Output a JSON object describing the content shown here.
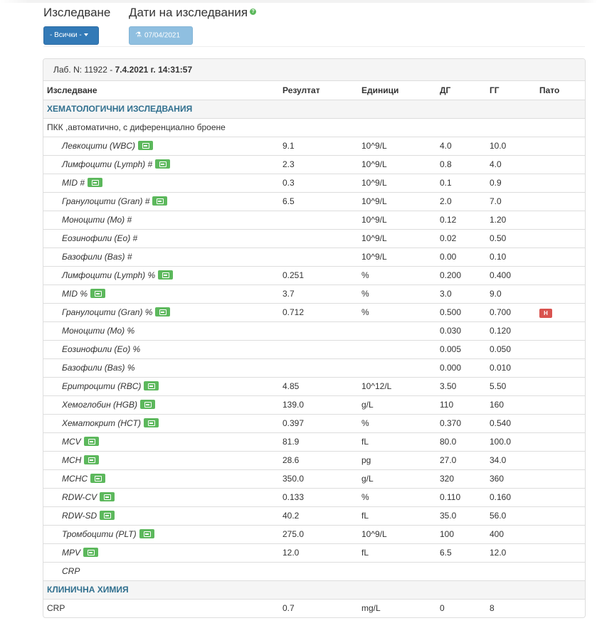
{
  "filters": {
    "study_label": "Изследване",
    "dates_label": "Дати на изследвания",
    "help_icon": "question-circle-icon",
    "study_button": "- Всички -",
    "date_button": "07/04/2021",
    "date_button_icon": "flask-icon"
  },
  "panel": {
    "lab_prefix": "Лаб. N: 11922 - ",
    "lab_datetime": "7.4.2021 г. 14:31:57"
  },
  "table": {
    "headers": [
      "Изследване",
      "Резултат",
      "Единици",
      "ДГ",
      "ГГ",
      "Пато"
    ],
    "sections": {
      "hematology": "ХЕМАТОЛОГИЧНИ ИЗСЛЕДВАНИЯ",
      "hematology_group": "ПКК ,автоматично, с диференциално броене",
      "chemistry": "КЛИНИЧНА ХИМИЯ"
    },
    "rows": [
      {
        "name": "Левкоцити (WBC)",
        "chart": true,
        "result": "9.1",
        "unit": "10^9/L",
        "low": "4.0",
        "high": "10.0",
        "flag": ""
      },
      {
        "name": "Лимфоцити (Lymph) #",
        "chart": true,
        "result": "2.3",
        "unit": "10^9/L",
        "low": "0.8",
        "high": "4.0",
        "flag": ""
      },
      {
        "name": "MID #",
        "chart": true,
        "result": "0.3",
        "unit": "10^9/L",
        "low": "0.1",
        "high": "0.9",
        "flag": ""
      },
      {
        "name": "Гранулоцити (Gran) #",
        "chart": true,
        "result": "6.5",
        "unit": "10^9/L",
        "low": "2.0",
        "high": "7.0",
        "flag": ""
      },
      {
        "name": "Моноцити (Mo) #",
        "chart": false,
        "result": "",
        "unit": "10^9/L",
        "low": "0.12",
        "high": "1.20",
        "flag": ""
      },
      {
        "name": "Еозинофили (Eo) #",
        "chart": false,
        "result": "",
        "unit": "10^9/L",
        "low": "0.02",
        "high": "0.50",
        "flag": ""
      },
      {
        "name": "Базофили (Bas) #",
        "chart": false,
        "result": "",
        "unit": "10^9/L",
        "low": "0.00",
        "high": "0.10",
        "flag": ""
      },
      {
        "name": "Лимфоцити (Lymph) %",
        "chart": true,
        "result": "0.251",
        "unit": "%",
        "low": "0.200",
        "high": "0.400",
        "flag": ""
      },
      {
        "name": "MID %",
        "chart": true,
        "result": "3.7",
        "unit": "%",
        "low": "3.0",
        "high": "9.0",
        "flag": ""
      },
      {
        "name": "Гранулоцити (Gran) %",
        "chart": true,
        "result": "0.712",
        "unit": "%",
        "low": "0.500",
        "high": "0.700",
        "flag": "H"
      },
      {
        "name": "Моноцити (Mo) %",
        "chart": false,
        "result": "",
        "unit": "",
        "low": "0.030",
        "high": "0.120",
        "flag": ""
      },
      {
        "name": "Еозинофили (Eo) %",
        "chart": false,
        "result": "",
        "unit": "",
        "low": "0.005",
        "high": "0.050",
        "flag": ""
      },
      {
        "name": "Базофили (Bas) %",
        "chart": false,
        "result": "",
        "unit": "",
        "low": "0.000",
        "high": "0.010",
        "flag": ""
      },
      {
        "name": "Еритроцити (RBC)",
        "chart": true,
        "result": "4.85",
        "unit": "10^12/L",
        "low": "3.50",
        "high": "5.50",
        "flag": ""
      },
      {
        "name": "Хемоглобин (HGB)",
        "chart": true,
        "result": "139.0",
        "unit": "g/L",
        "low": "110",
        "high": "160",
        "flag": ""
      },
      {
        "name": "Хематокрит (HCT)",
        "chart": true,
        "result": "0.397",
        "unit": "%",
        "low": "0.370",
        "high": "0.540",
        "flag": ""
      },
      {
        "name": "MCV",
        "chart": true,
        "result": "81.9",
        "unit": "fL",
        "low": "80.0",
        "high": "100.0",
        "flag": ""
      },
      {
        "name": "MCH",
        "chart": true,
        "result": "28.6",
        "unit": "pg",
        "low": "27.0",
        "high": "34.0",
        "flag": ""
      },
      {
        "name": "MCHC",
        "chart": true,
        "result": "350.0",
        "unit": "g/L",
        "low": "320",
        "high": "360",
        "flag": ""
      },
      {
        "name": "RDW-CV",
        "chart": true,
        "result": "0.133",
        "unit": "%",
        "low": "0.110",
        "high": "0.160",
        "flag": ""
      },
      {
        "name": "RDW-SD",
        "chart": true,
        "result": "40.2",
        "unit": "fL",
        "low": "35.0",
        "high": "56.0",
        "flag": ""
      },
      {
        "name": "Тромбоцити (PLT)",
        "chart": true,
        "result": "275.0",
        "unit": "10^9/L",
        "low": "100",
        "high": "400",
        "flag": ""
      },
      {
        "name": "MPV",
        "chart": true,
        "result": "12.0",
        "unit": "fL",
        "low": "6.5",
        "high": "12.0",
        "flag": ""
      },
      {
        "name": "CRP",
        "chart": false,
        "result": "",
        "unit": "",
        "low": "",
        "high": "",
        "flag": ""
      }
    ],
    "chemistry_rows": [
      {
        "name": "CRP",
        "result": "0.7",
        "unit": "mg/L",
        "low": "0",
        "high": "8",
        "flag": ""
      }
    ]
  },
  "colors": {
    "primary": "#337ab7",
    "section_text": "#31708f",
    "chart_icon": "#5cb85c",
    "flag_high": "#d9534f"
  }
}
